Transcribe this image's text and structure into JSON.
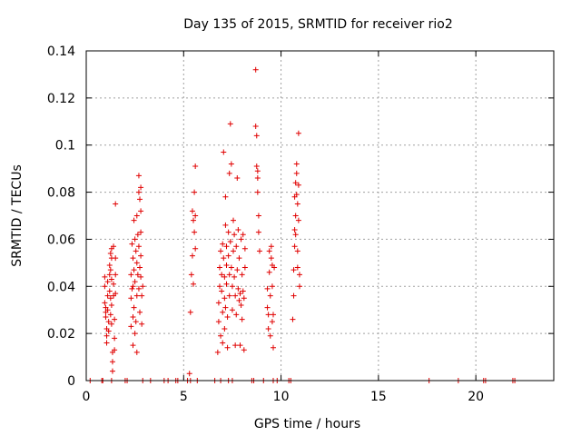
{
  "chart_data": {
    "type": "scatter",
    "title": "Day 135 of 2015, SRMTID for receiver rio2",
    "xlabel": "GPS time / hours",
    "ylabel": "SRMTID / TECUs",
    "xlim": [
      0,
      24
    ],
    "ylim": [
      0,
      0.14
    ],
    "xticks": [
      0,
      5,
      10,
      15,
      20
    ],
    "xtick_labels": [
      "0",
      "5",
      "10",
      "15",
      "20"
    ],
    "yticks": [
      0,
      0.02,
      0.04,
      0.06,
      0.08,
      0.1,
      0.12,
      0.14
    ],
    "ytick_labels": [
      "0",
      "0.02",
      "0.04",
      "0.06",
      "0.08",
      "0.1",
      "0.12",
      "0.14"
    ],
    "grid": true,
    "marker": "+",
    "color": "#e00000",
    "series": [
      {
        "name": "SRMTID",
        "points": [
          [
            0.2,
            0
          ],
          [
            0.8,
            0
          ],
          [
            0.85,
            0
          ],
          [
            1.3,
            0
          ],
          [
            2.0,
            0
          ],
          [
            2.1,
            0
          ],
          [
            2.9,
            0
          ],
          [
            3.3,
            0
          ],
          [
            4.0,
            0
          ],
          [
            4.2,
            0
          ],
          [
            4.6,
            0
          ],
          [
            4.7,
            0
          ],
          [
            5.2,
            0
          ],
          [
            5.35,
            0
          ],
          [
            5.7,
            0
          ],
          [
            6.6,
            0
          ],
          [
            6.9,
            0
          ],
          [
            7.3,
            0
          ],
          [
            7.5,
            0
          ],
          [
            8.5,
            0
          ],
          [
            8.6,
            0
          ],
          [
            9.1,
            0
          ],
          [
            9.6,
            0
          ],
          [
            9.8,
            0
          ],
          [
            10.4,
            0
          ],
          [
            10.5,
            0
          ],
          [
            17.6,
            0
          ],
          [
            19.1,
            0
          ],
          [
            20.4,
            0
          ],
          [
            20.5,
            0
          ],
          [
            21.9,
            0
          ],
          [
            22.0,
            0
          ],
          [
            0.95,
            0.044
          ],
          [
            0.95,
            0.04
          ],
          [
            0.95,
            0.033
          ],
          [
            1.0,
            0.031
          ],
          [
            1.0,
            0.029
          ],
          [
            1.0,
            0.027
          ],
          [
            1.05,
            0.022
          ],
          [
            1.05,
            0.019
          ],
          [
            1.05,
            0.016
          ],
          [
            1.1,
            0.042
          ],
          [
            1.1,
            0.036
          ],
          [
            1.1,
            0.03
          ],
          [
            1.15,
            0.025
          ],
          [
            1.15,
            0.021
          ],
          [
            1.2,
            0.049
          ],
          [
            1.2,
            0.045
          ],
          [
            1.2,
            0.038
          ],
          [
            1.25,
            0.054
          ],
          [
            1.25,
            0.047
          ],
          [
            1.25,
            0.035
          ],
          [
            1.25,
            0.028
          ],
          [
            1.3,
            0.056
          ],
          [
            1.3,
            0.052
          ],
          [
            1.3,
            0.043
          ],
          [
            1.3,
            0.032
          ],
          [
            1.3,
            0.024
          ],
          [
            1.35,
            0.012
          ],
          [
            1.35,
            0.008
          ],
          [
            1.35,
            0.004
          ],
          [
            1.4,
            0.057
          ],
          [
            1.4,
            0.041
          ],
          [
            1.4,
            0.036
          ],
          [
            1.45,
            0.026
          ],
          [
            1.45,
            0.018
          ],
          [
            1.45,
            0.013
          ],
          [
            1.5,
            0.052
          ],
          [
            1.5,
            0.045
          ],
          [
            1.5,
            0.037
          ],
          [
            1.5,
            0.075
          ],
          [
            2.3,
            0.045
          ],
          [
            2.3,
            0.035
          ],
          [
            2.3,
            0.023
          ],
          [
            2.35,
            0.058
          ],
          [
            2.35,
            0.039
          ],
          [
            2.4,
            0.052
          ],
          [
            2.4,
            0.04
          ],
          [
            2.4,
            0.027
          ],
          [
            2.4,
            0.015
          ],
          [
            2.45,
            0.068
          ],
          [
            2.45,
            0.047
          ],
          [
            2.45,
            0.031
          ],
          [
            2.5,
            0.06
          ],
          [
            2.5,
            0.042
          ],
          [
            2.5,
            0.02
          ],
          [
            2.55,
            0.055
          ],
          [
            2.55,
            0.025
          ],
          [
            2.6,
            0.07
          ],
          [
            2.6,
            0.05
          ],
          [
            2.6,
            0.036
          ],
          [
            2.6,
            0.012
          ],
          [
            2.65,
            0.062
          ],
          [
            2.65,
            0.045
          ],
          [
            2.7,
            0.087
          ],
          [
            2.7,
            0.08
          ],
          [
            2.7,
            0.057
          ],
          [
            2.7,
            0.039
          ],
          [
            2.75,
            0.077
          ],
          [
            2.75,
            0.048
          ],
          [
            2.75,
            0.029
          ],
          [
            2.8,
            0.082
          ],
          [
            2.8,
            0.072
          ],
          [
            2.8,
            0.063
          ],
          [
            2.8,
            0.053
          ],
          [
            2.8,
            0.044
          ],
          [
            2.85,
            0.036
          ],
          [
            2.85,
            0.024
          ],
          [
            2.9,
            0.04
          ],
          [
            5.3,
            0.003
          ],
          [
            5.35,
            0.029
          ],
          [
            5.4,
            0.045
          ],
          [
            5.45,
            0.053
          ],
          [
            5.45,
            0.072
          ],
          [
            5.5,
            0.068
          ],
          [
            5.5,
            0.041
          ],
          [
            5.55,
            0.063
          ],
          [
            5.55,
            0.08
          ],
          [
            5.6,
            0.091
          ],
          [
            5.6,
            0.056
          ],
          [
            5.6,
            0.07
          ],
          [
            6.75,
            0.012
          ],
          [
            6.8,
            0.025
          ],
          [
            6.8,
            0.033
          ],
          [
            6.85,
            0.04
          ],
          [
            6.85,
            0.048
          ],
          [
            6.9,
            0.055
          ],
          [
            6.9,
            0.019
          ],
          [
            6.95,
            0.045
          ],
          [
            6.95,
            0.038
          ],
          [
            7.0,
            0.058
          ],
          [
            7.0,
            0.029
          ],
          [
            7.0,
            0.016
          ],
          [
            7.05,
            0.097
          ],
          [
            7.05,
            0.052
          ],
          [
            7.1,
            0.044
          ],
          [
            7.1,
            0.035
          ],
          [
            7.1,
            0.022
          ],
          [
            7.15,
            0.066
          ],
          [
            7.15,
            0.078
          ],
          [
            7.15,
            0.031
          ],
          [
            7.2,
            0.057
          ],
          [
            7.2,
            0.049
          ],
          [
            7.2,
            0.041
          ],
          [
            7.25,
            0.027
          ],
          [
            7.25,
            0.014
          ],
          [
            7.3,
            0.063
          ],
          [
            7.3,
            0.053
          ],
          [
            7.35,
            0.088
          ],
          [
            7.35,
            0.045
          ],
          [
            7.35,
            0.036
          ],
          [
            7.4,
            0.109
          ],
          [
            7.4,
            0.059
          ],
          [
            7.45,
            0.092
          ],
          [
            7.45,
            0.048
          ],
          [
            7.5,
            0.04
          ],
          [
            7.5,
            0.03
          ],
          [
            7.55,
            0.068
          ],
          [
            7.55,
            0.055
          ],
          [
            7.6,
            0.062
          ],
          [
            7.6,
            0.044
          ],
          [
            7.65,
            0.015
          ],
          [
            7.65,
            0.036
          ],
          [
            7.7,
            0.057
          ],
          [
            7.7,
            0.028
          ],
          [
            7.75,
            0.086
          ],
          [
            7.75,
            0.047
          ],
          [
            7.8,
            0.064
          ],
          [
            7.8,
            0.039
          ],
          [
            7.85,
            0.034
          ],
          [
            7.85,
            0.052
          ],
          [
            7.9,
            0.037
          ],
          [
            7.9,
            0.015
          ],
          [
            7.95,
            0.06
          ],
          [
            7.95,
            0.032
          ],
          [
            8.0,
            0.045
          ],
          [
            8.0,
            0.026
          ],
          [
            8.05,
            0.062
          ],
          [
            8.05,
            0.038
          ],
          [
            8.1,
            0.035
          ],
          [
            8.1,
            0.013
          ],
          [
            8.15,
            0.048
          ],
          [
            8.15,
            0.056
          ],
          [
            8.7,
            0.132
          ],
          [
            8.7,
            0.108
          ],
          [
            8.75,
            0.104
          ],
          [
            8.75,
            0.091
          ],
          [
            8.8,
            0.089
          ],
          [
            8.8,
            0.086
          ],
          [
            8.8,
            0.08
          ],
          [
            8.85,
            0.07
          ],
          [
            8.85,
            0.063
          ],
          [
            8.9,
            0.055
          ],
          [
            9.3,
            0.039
          ],
          [
            9.3,
            0.031
          ],
          [
            9.35,
            0.028
          ],
          [
            9.35,
            0.022
          ],
          [
            9.4,
            0.055
          ],
          [
            9.4,
            0.046
          ],
          [
            9.45,
            0.036
          ],
          [
            9.45,
            0.019
          ],
          [
            9.5,
            0.057
          ],
          [
            9.5,
            0.052
          ],
          [
            9.55,
            0.049
          ],
          [
            9.55,
            0.04
          ],
          [
            9.55,
            0.025
          ],
          [
            9.6,
            0.028
          ],
          [
            9.6,
            0.014
          ],
          [
            9.65,
            0.048
          ],
          [
            10.6,
            0.026
          ],
          [
            10.65,
            0.036
          ],
          [
            10.65,
            0.047
          ],
          [
            10.7,
            0.078
          ],
          [
            10.7,
            0.064
          ],
          [
            10.7,
            0.057
          ],
          [
            10.75,
            0.084
          ],
          [
            10.75,
            0.07
          ],
          [
            10.75,
            0.062
          ],
          [
            10.8,
            0.092
          ],
          [
            10.8,
            0.088
          ],
          [
            10.8,
            0.079
          ],
          [
            10.85,
            0.075
          ],
          [
            10.85,
            0.055
          ],
          [
            10.85,
            0.048
          ],
          [
            10.9,
            0.105
          ],
          [
            10.9,
            0.083
          ],
          [
            10.9,
            0.068
          ],
          [
            10.95,
            0.045
          ],
          [
            10.95,
            0.04
          ]
        ]
      }
    ]
  }
}
